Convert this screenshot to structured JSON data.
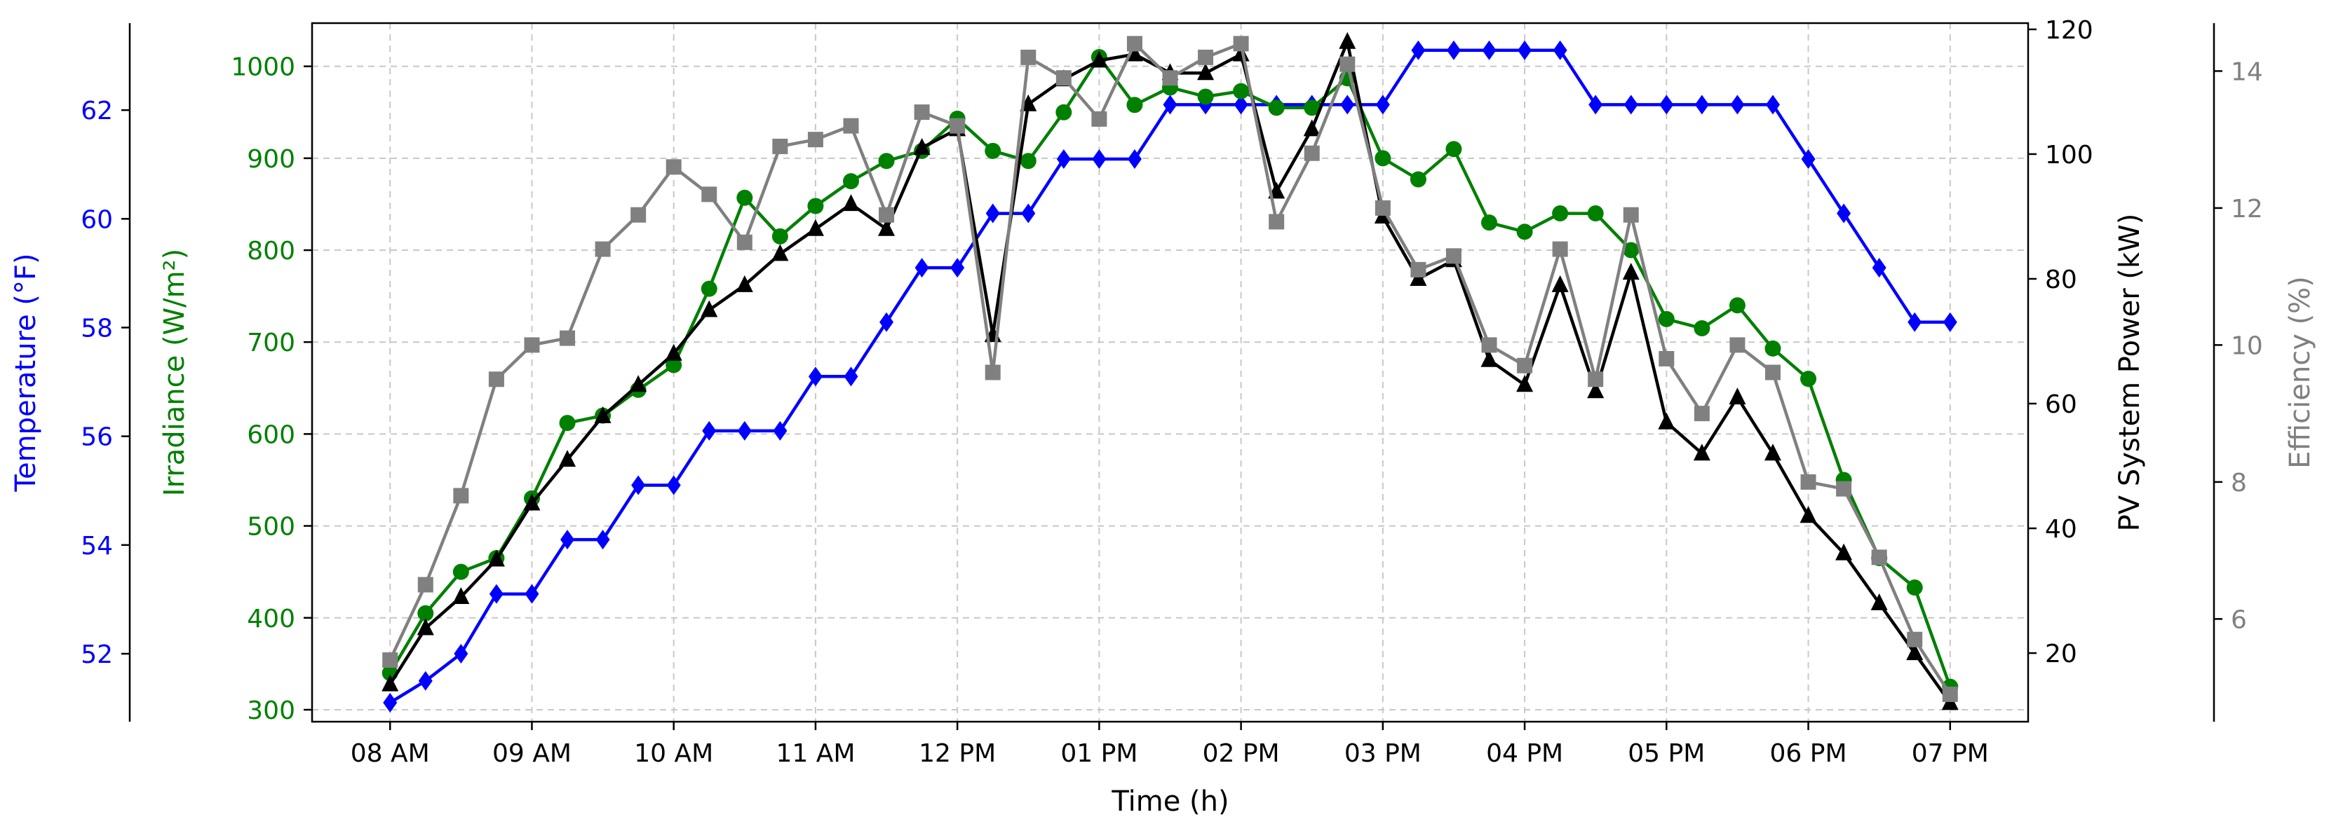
{
  "chart_data": {
    "type": "line",
    "xlabel": "Time (h)",
    "x_ticks": [
      "08 AM",
      "09 AM",
      "10 AM",
      "11 AM",
      "12 PM",
      "01 PM",
      "02 PM",
      "03 PM",
      "04 PM",
      "05 PM",
      "06 PM",
      "07 PM"
    ],
    "x_range": [
      7.45,
      19.55
    ],
    "grid": true,
    "axes": {
      "temperature": {
        "label": "Temperature (°F)",
        "color": "#0000ff",
        "side": "left-outer",
        "range": [
          50.75,
          63.6
        ],
        "ticks": [
          52,
          54,
          56,
          58,
          60,
          62
        ]
      },
      "irradiance": {
        "label": "Irradiance (W/m²)",
        "color": "#008000",
        "side": "left-inner",
        "range": [
          287,
          1047
        ],
        "ticks": [
          300,
          400,
          500,
          600,
          700,
          800,
          900,
          1000
        ]
      },
      "power": {
        "label": "PV System Power (kW)",
        "color": "#000000",
        "side": "right-inner",
        "range": [
          9,
          121
        ],
        "ticks": [
          20,
          40,
          60,
          80,
          100,
          120
        ]
      },
      "efficiency": {
        "label": "Efficiency (%)",
        "color": "#808080",
        "side": "right-outer",
        "range": [
          4.5,
          14.7
        ],
        "ticks": [
          6,
          8,
          10,
          12,
          14
        ]
      }
    },
    "x": [
      8.0,
      8.25,
      8.5,
      8.75,
      9.0,
      9.25,
      9.5,
      9.75,
      10.0,
      10.25,
      10.5,
      10.75,
      11.0,
      11.25,
      11.5,
      11.75,
      12.0,
      12.25,
      12.5,
      12.75,
      13.0,
      13.25,
      13.5,
      13.75,
      14.0,
      14.25,
      14.5,
      14.75,
      15.0,
      15.25,
      15.5,
      15.75,
      16.0,
      16.25,
      16.5,
      16.75,
      17.0,
      17.25,
      17.5,
      17.75,
      18.0,
      18.25,
      18.5,
      18.75,
      19.0
    ],
    "series": [
      {
        "axis": "temperature",
        "color": "#0000ff",
        "marker": "diamond",
        "values": [
          51.1,
          51.5,
          52.0,
          53.1,
          53.1,
          54.1,
          54.1,
          55.1,
          55.1,
          56.1,
          56.1,
          56.1,
          57.1,
          57.1,
          58.1,
          59.1,
          59.1,
          60.1,
          60.1,
          61.1,
          61.1,
          61.1,
          62.1,
          62.1,
          62.1,
          62.1,
          62.1,
          62.1,
          62.1,
          63.1,
          63.1,
          63.1,
          63.1,
          63.1,
          62.1,
          62.1,
          62.1,
          62.1,
          62.1,
          62.1,
          61.1,
          60.1,
          59.1,
          58.1,
          58.1
        ]
      },
      {
        "axis": "irradiance",
        "color": "#008000",
        "marker": "circle",
        "values": [
          340,
          405,
          450,
          465,
          530,
          612,
          620,
          648,
          675,
          758,
          857,
          815,
          848,
          875,
          897,
          908,
          943,
          908,
          897,
          950,
          1010,
          958,
          977,
          967,
          973,
          955,
          955,
          987,
          900,
          877,
          910,
          830,
          820,
          840,
          840,
          800,
          725,
          715,
          740,
          693,
          660,
          550,
          465,
          433,
          325
        ]
      },
      {
        "axis": "power",
        "color": "#000000",
        "marker": "triangle",
        "values": [
          15,
          24,
          29,
          35,
          44,
          51,
          58,
          63,
          68,
          75,
          79,
          84,
          88,
          92,
          88,
          101,
          104,
          71,
          108,
          112,
          115,
          116,
          113,
          113,
          116,
          94,
          104,
          118,
          90,
          80,
          83,
          67,
          63,
          79,
          62,
          81,
          57,
          52,
          61,
          52,
          42,
          36,
          28,
          20,
          12
        ]
      },
      {
        "axis": "efficiency",
        "color": "#808080",
        "marker": "square",
        "values": [
          5.4,
          6.5,
          7.8,
          9.5,
          10.0,
          10.1,
          11.4,
          11.9,
          12.6,
          12.2,
          11.5,
          12.9,
          13.0,
          13.2,
          11.9,
          13.4,
          13.2,
          9.6,
          14.2,
          13.9,
          13.3,
          14.4,
          13.9,
          14.2,
          14.4,
          11.8,
          12.8,
          14.1,
          12.0,
          11.1,
          11.3,
          10.0,
          9.7,
          11.4,
          9.5,
          11.9,
          9.8,
          9.0,
          10.0,
          9.6,
          8.0,
          7.9,
          6.9,
          5.7,
          4.9
        ]
      }
    ]
  }
}
